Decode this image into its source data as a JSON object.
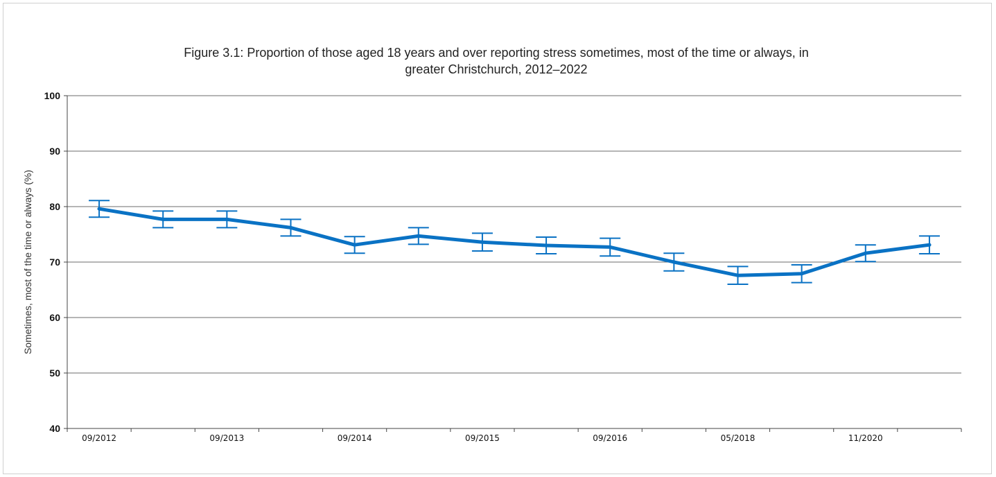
{
  "chart_data": {
    "type": "line",
    "title": "Figure 3.1: Proportion of those aged 18 years and over reporting stress sometimes, most of the time or always, in greater Christchurch, 2012–2022",
    "title_lines": [
      "Figure 3.1: Proportion of those aged 18 years and over reporting stress sometimes, most of the time or always, in",
      "greater Christchurch, 2012–2022"
    ],
    "xlabel": "",
    "ylabel": "Sometimes, most of the time or always (%)",
    "ylim": [
      40,
      100
    ],
    "yticks": [
      40,
      50,
      60,
      70,
      80,
      90,
      100
    ],
    "grid": true,
    "x_tick_labels": [
      "09/2012",
      "09/2013",
      "09/2014",
      "09/2015",
      "09/2016",
      "05/2018",
      "11/2020"
    ],
    "x_tick_positions": [
      0,
      2,
      4,
      6,
      8,
      10,
      12
    ],
    "series": [
      {
        "values": [
          79.6,
          77.7,
          77.7,
          76.2,
          73.1,
          74.7,
          73.6,
          73.0,
          72.7,
          70.0,
          67.6,
          67.9,
          71.6,
          73.1
        ],
        "lower": [
          78.1,
          76.2,
          76.2,
          74.7,
          71.6,
          73.2,
          72.0,
          71.5,
          71.1,
          68.4,
          66.0,
          66.3,
          70.1,
          71.5
        ],
        "upper": [
          81.1,
          79.2,
          79.2,
          77.7,
          74.6,
          76.2,
          75.2,
          74.5,
          74.3,
          71.6,
          69.2,
          69.5,
          73.1,
          74.7
        ]
      }
    ],
    "line_color": "#0a72c4"
  }
}
